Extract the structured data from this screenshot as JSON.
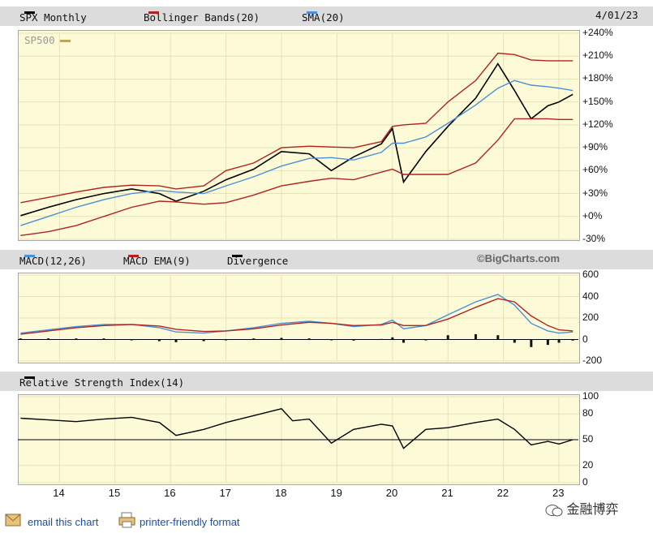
{
  "header": {
    "symbol": "SPX Monthly",
    "bb": "Bollinger Bands(20)",
    "sma": "SMA(20)",
    "date": "4/01/23",
    "series_label": "SP500"
  },
  "macd_header": {
    "macd": "MACD(12,26)",
    "ema": "MACD EMA(9)",
    "div": "Divergence",
    "brand": "©BigCharts.com"
  },
  "rsi_header": {
    "label": "Relative Strength Index(14)"
  },
  "colors": {
    "price": "#000000",
    "bb": "#b22222",
    "sma": "#4a90d9",
    "panel": "#fdfbd7",
    "grid": "#e6e2b8"
  },
  "footer": {
    "email": "email this chart",
    "print": "printer-friendly format",
    "watermark": "金融博弈"
  },
  "chart_data": [
    {
      "type": "line",
      "title": "SPX Monthly",
      "legend": [
        "Bollinger Bands(20)",
        "SMA(20)"
      ],
      "series_label": "SP500",
      "x_ticks": [
        "14",
        "15",
        "16",
        "17",
        "18",
        "19",
        "20",
        "21",
        "22",
        "23"
      ],
      "y_ticks": [
        "+240%",
        "+210%",
        "+180%",
        "+150%",
        "+120%",
        "+90%",
        "+60%",
        "+30%",
        "+0%",
        "-30%"
      ],
      "ylim": [
        -30,
        240
      ],
      "x": [
        2013.3,
        2013.8,
        2014.3,
        2014.8,
        2015.3,
        2015.8,
        2016.1,
        2016.6,
        2017.0,
        2017.5,
        2018.0,
        2018.5,
        2018.9,
        2019.3,
        2019.8,
        2020.0,
        2020.2,
        2020.6,
        2021.0,
        2021.5,
        2021.9,
        2022.2,
        2022.5,
        2022.8,
        2023.0,
        2023.25
      ],
      "series": [
        {
          "name": "SP500",
          "values": [
            1,
            12,
            22,
            30,
            36,
            30,
            20,
            33,
            48,
            62,
            85,
            82,
            60,
            78,
            95,
            115,
            45,
            85,
            118,
            155,
            200,
            165,
            128,
            145,
            150,
            160
          ]
        },
        {
          "name": "Upper Bollinger",
          "values": [
            18,
            25,
            32,
            38,
            41,
            40,
            36,
            40,
            60,
            70,
            90,
            92,
            91,
            90,
            98,
            118,
            120,
            122,
            150,
            178,
            214,
            212,
            205,
            204,
            204,
            204
          ]
        },
        {
          "name": "SMA(20)",
          "values": [
            -12,
            0,
            12,
            22,
            30,
            34,
            32,
            30,
            40,
            52,
            66,
            76,
            77,
            74,
            84,
            96,
            96,
            104,
            122,
            146,
            168,
            178,
            172,
            170,
            168,
            165
          ]
        },
        {
          "name": "Lower Bollinger",
          "values": [
            -25,
            -20,
            -12,
            0,
            12,
            20,
            19,
            16,
            18,
            28,
            40,
            46,
            50,
            48,
            58,
            62,
            55,
            55,
            55,
            70,
            100,
            128,
            128,
            128,
            127,
            127
          ]
        }
      ]
    },
    {
      "type": "line",
      "title": "MACD(12,26)",
      "legend": [
        "MACD(12,26)",
        "MACD EMA(9)",
        "Divergence"
      ],
      "y_ticks": [
        "600",
        "400",
        "200",
        "0",
        "-200"
      ],
      "ylim": [
        -200,
        600
      ],
      "x": [
        2013.3,
        2013.8,
        2014.3,
        2014.8,
        2015.3,
        2015.8,
        2016.1,
        2016.6,
        2017.0,
        2017.5,
        2018.0,
        2018.5,
        2018.9,
        2019.3,
        2019.8,
        2020.0,
        2020.2,
        2020.6,
        2021.0,
        2021.5,
        2021.9,
        2022.2,
        2022.5,
        2022.8,
        2023.0,
        2023.25
      ],
      "series": [
        {
          "name": "MACD(12,26)",
          "values": [
            60,
            90,
            120,
            140,
            140,
            110,
            70,
            60,
            80,
            110,
            150,
            170,
            150,
            120,
            140,
            180,
            100,
            130,
            230,
            350,
            420,
            320,
            150,
            80,
            60,
            70
          ]
        },
        {
          "name": "MACD EMA(9)",
          "values": [
            50,
            80,
            110,
            130,
            140,
            125,
            95,
            75,
            80,
            100,
            135,
            160,
            150,
            130,
            135,
            160,
            130,
            130,
            190,
            300,
            380,
            350,
            220,
            130,
            90,
            80
          ]
        },
        {
          "name": "Divergence",
          "values": [
            10,
            10,
            10,
            10,
            0,
            -15,
            -25,
            -15,
            0,
            10,
            15,
            10,
            0,
            -10,
            5,
            20,
            -30,
            0,
            40,
            50,
            40,
            -30,
            -70,
            -50,
            -30,
            -10
          ]
        }
      ]
    },
    {
      "type": "line",
      "title": "Relative Strength Index(14)",
      "y_ticks": [
        "100",
        "80",
        "50",
        "20",
        "0"
      ],
      "ylim": [
        0,
        100
      ],
      "x": [
        2013.3,
        2013.8,
        2014.3,
        2014.8,
        2015.3,
        2015.8,
        2016.1,
        2016.6,
        2017.0,
        2017.5,
        2018.0,
        2018.2,
        2018.5,
        2018.9,
        2019.3,
        2019.8,
        2020.0,
        2020.2,
        2020.6,
        2021.0,
        2021.5,
        2021.9,
        2022.2,
        2022.5,
        2022.8,
        2023.0,
        2023.25
      ],
      "series": [
        {
          "name": "RSI(14)",
          "values": [
            75,
            73,
            71,
            74,
            76,
            70,
            55,
            62,
            70,
            78,
            86,
            72,
            74,
            46,
            62,
            68,
            66,
            40,
            62,
            64,
            70,
            74,
            62,
            44,
            48,
            45,
            50
          ]
        }
      ]
    }
  ]
}
